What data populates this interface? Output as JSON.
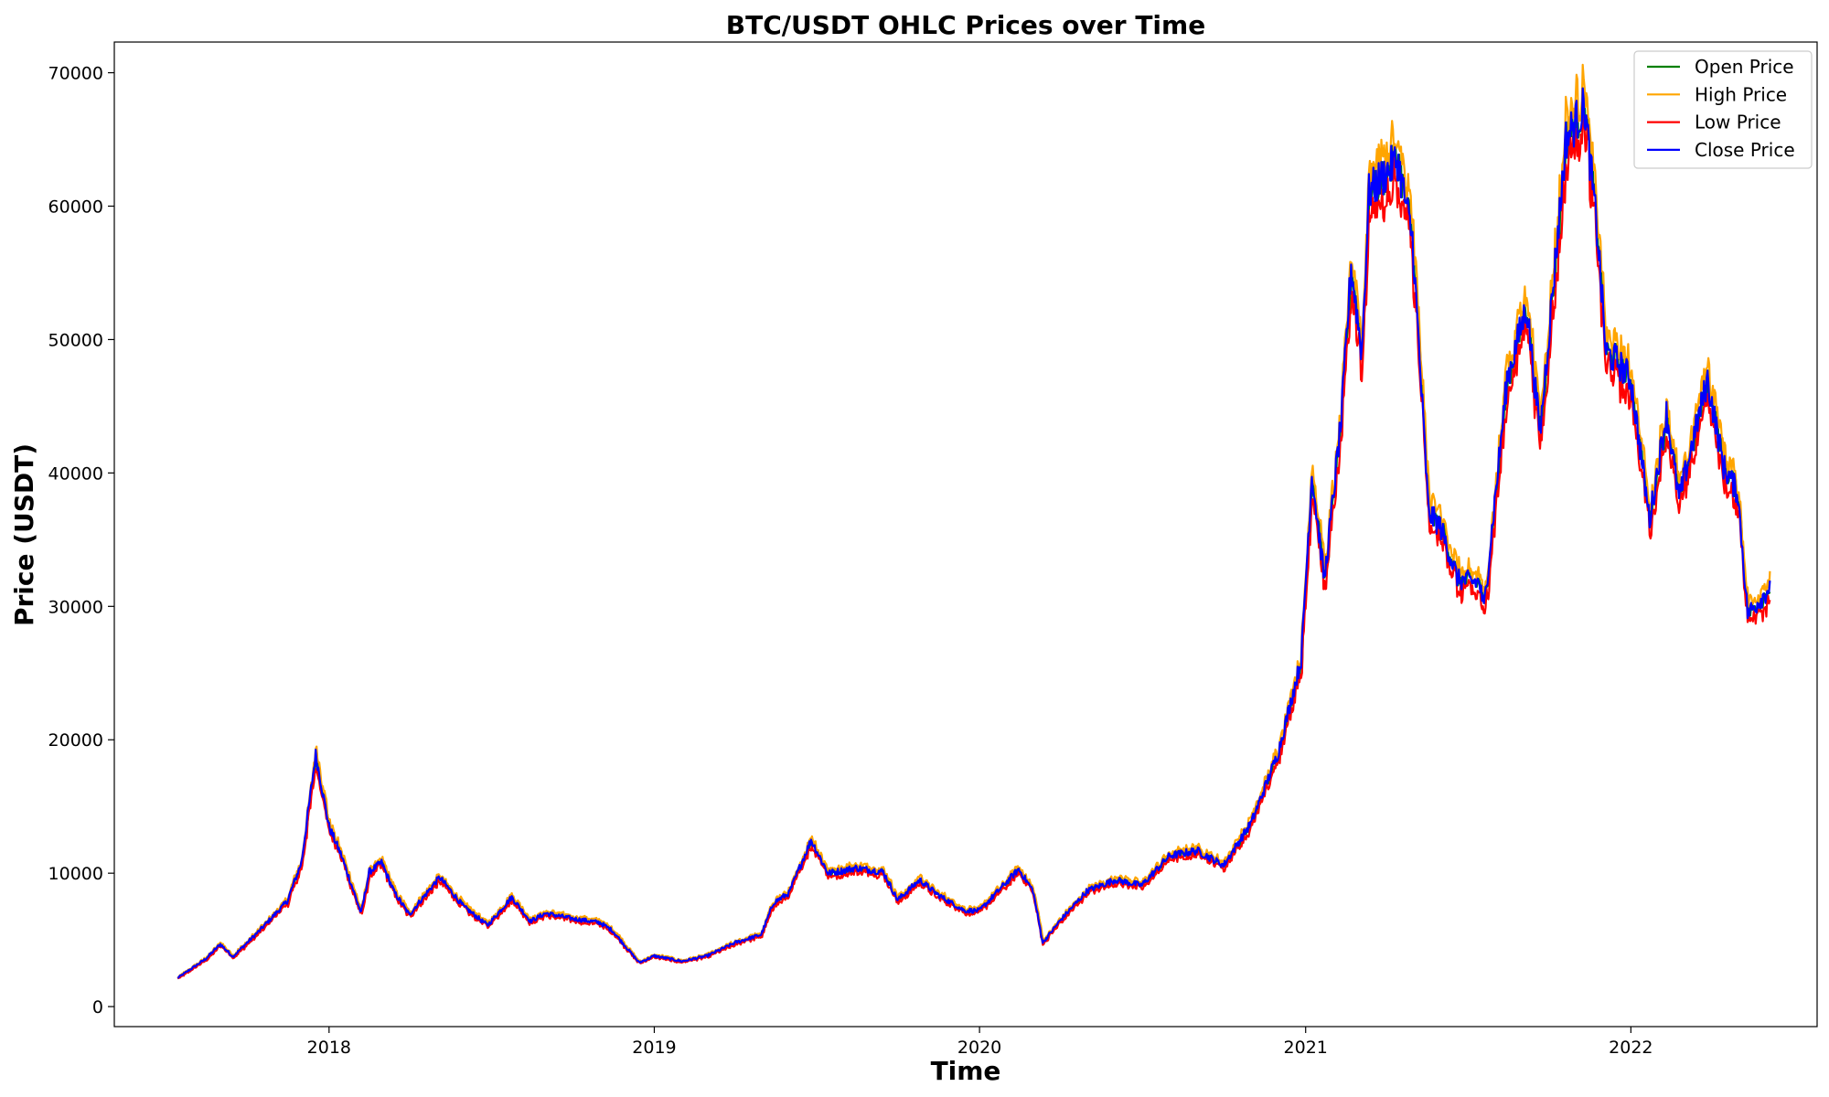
{
  "chart_data": {
    "type": "line",
    "title": "BTC/USDT OHLC Prices over Time",
    "xlabel": "Time",
    "ylabel": "Price (USDT)",
    "xlim": [
      "2017-05-05",
      "2022-07-29"
    ],
    "ylim": [
      -1500,
      72300
    ],
    "x_ticks": [
      "2018",
      "2019",
      "2020",
      "2021",
      "2022"
    ],
    "y_ticks": [
      0,
      10000,
      20000,
      30000,
      40000,
      50000,
      60000,
      70000
    ],
    "grid": false,
    "legend": {
      "position": "top-right"
    },
    "series": [
      {
        "name": "Open Price",
        "color": "#008000"
      },
      {
        "name": "High Price",
        "color": "#ffa500"
      },
      {
        "name": "Low Price",
        "color": "#ff0000"
      },
      {
        "name": "Close Price",
        "color": "#0000ff"
      }
    ],
    "x": [
      "2017-07-15",
      "2017-08-15",
      "2017-09-01",
      "2017-09-15",
      "2017-10-15",
      "2017-11-15",
      "2017-12-01",
      "2017-12-17",
      "2018-01-01",
      "2018-01-15",
      "2018-02-06",
      "2018-02-15",
      "2018-03-01",
      "2018-03-15",
      "2018-04-01",
      "2018-05-05",
      "2018-06-01",
      "2018-06-28",
      "2018-07-25",
      "2018-08-15",
      "2018-09-01",
      "2018-10-01",
      "2018-11-01",
      "2018-11-15",
      "2018-12-15",
      "2019-01-01",
      "2019-02-01",
      "2019-03-01",
      "2019-04-02",
      "2019-05-01",
      "2019-05-15",
      "2019-06-01",
      "2019-06-26",
      "2019-07-15",
      "2019-08-01",
      "2019-08-15",
      "2019-09-15",
      "2019-10-01",
      "2019-10-26",
      "2019-11-15",
      "2019-12-15",
      "2020-01-01",
      "2020-02-14",
      "2020-03-01",
      "2020-03-12",
      "2020-04-01",
      "2020-05-01",
      "2020-06-01",
      "2020-07-01",
      "2020-08-01",
      "2020-09-01",
      "2020-10-01",
      "2020-11-01",
      "2020-12-01",
      "2020-12-27",
      "2021-01-08",
      "2021-01-22",
      "2021-02-10",
      "2021-02-21",
      "2021-03-05",
      "2021-03-13",
      "2021-04-14",
      "2021-05-01",
      "2021-05-19",
      "2021-06-01",
      "2021-06-21",
      "2021-07-15",
      "2021-07-20",
      "2021-08-15",
      "2021-09-06",
      "2021-09-21",
      "2021-10-15",
      "2021-10-20",
      "2021-11-10",
      "2021-11-25",
      "2021-12-04",
      "2021-12-15",
      "2022-01-01",
      "2022-01-22",
      "2022-02-10",
      "2022-02-24",
      "2022-03-28",
      "2022-04-15",
      "2022-05-01",
      "2022-05-12",
      "2022-05-20",
      "2022-06-01",
      "2022-06-06"
    ],
    "close": [
      2150,
      3550,
      4680,
      3750,
      5700,
      7900,
      10800,
      18900,
      13500,
      11300,
      7000,
      10100,
      10800,
      8600,
      6900,
      9700,
      7500,
      6100,
      8200,
      6400,
      7000,
      6600,
      6300,
      5700,
      3300,
      3800,
      3400,
      3800,
      4800,
      5400,
      7800,
      8500,
      12500,
      10000,
      10200,
      10400,
      10100,
      8000,
      9500,
      8400,
      7200,
      7200,
      10300,
      8700,
      4800,
      6500,
      8700,
      9500,
      9100,
      11300,
      11700,
      10600,
      13800,
      19000,
      26000,
      40000,
      32000,
      44000,
      55500,
      49000,
      61000,
      63500,
      57500,
      37000,
      36000,
      32000,
      31800,
      29800,
      47000,
      52500,
      43000,
      61000,
      65000,
      67500,
      57500,
      49000,
      48500,
      47000,
      36500,
      44500,
      38000,
      47000,
      40500,
      38500,
      29500,
      30000,
      31000,
      31500
    ]
  }
}
